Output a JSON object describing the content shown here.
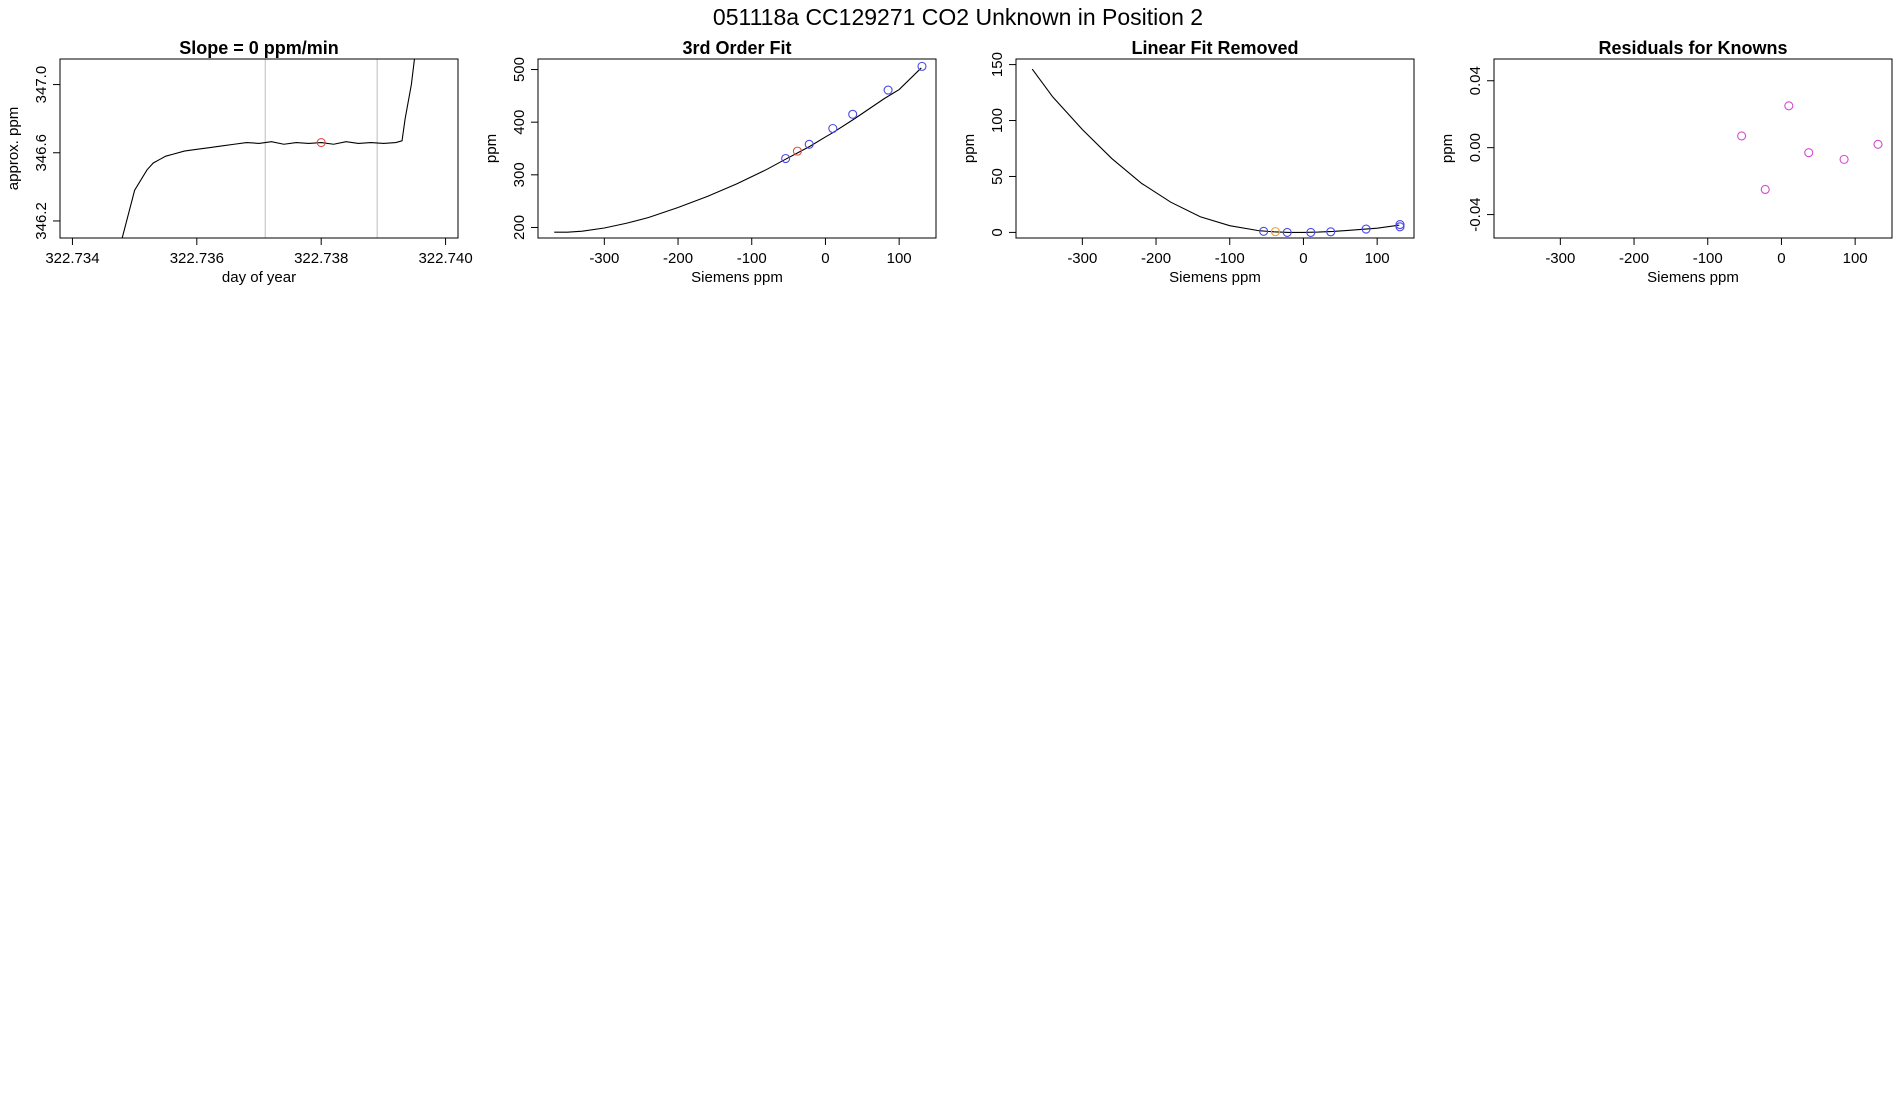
{
  "suptitle": "051118a      CC129271    CO2 Unknown in Position  2",
  "colors": {
    "known": "#4a4ae6",
    "unknown_red": "#e64a4a",
    "unknown_orange": "#f0a020",
    "residual": "#d24ad2",
    "gridline": "#bdbdbd"
  },
  "chart_data": [
    {
      "type": "line",
      "title": "Slope =  0  ppm/min",
      "xlabel": "day of year",
      "ylabel": "approx. ppm",
      "xlim": [
        322.7338,
        322.7402
      ],
      "ylim": [
        346.1,
        347.15
      ],
      "xticks": [
        322.734,
        322.736,
        322.738,
        322.74
      ],
      "xtick_labels": [
        "322.734",
        "322.736",
        "322.738",
        "322.740"
      ],
      "yticks": [
        346.2,
        346.6,
        347.0
      ],
      "ytick_labels": [
        "346.2",
        "346.6",
        "347.0"
      ],
      "vlines": [
        322.7371,
        322.7389
      ],
      "series": [
        {
          "x": [
            322.7348,
            322.735,
            322.7352,
            322.7353,
            322.7354,
            322.7355,
            322.7356,
            322.7358,
            322.736,
            322.7362,
            322.7364,
            322.7366,
            322.7368,
            322.737,
            322.7372,
            322.7374,
            322.7376,
            322.7378,
            322.738,
            322.7382,
            322.7384,
            322.7386,
            322.7388,
            322.739,
            322.7392,
            322.7393,
            322.73935,
            322.73945,
            322.7395
          ],
          "y": [
            346.1,
            346.38,
            346.5,
            346.54,
            346.56,
            346.58,
            346.59,
            346.61,
            346.62,
            346.63,
            346.64,
            346.65,
            346.66,
            346.655,
            346.665,
            346.65,
            346.66,
            346.655,
            346.66,
            346.65,
            346.665,
            346.655,
            346.66,
            346.655,
            346.66,
            346.67,
            346.8,
            347.0,
            347.15
          ]
        }
      ],
      "points": [
        {
          "x": 322.738,
          "y": 346.66,
          "color": "#e64a4a"
        }
      ]
    },
    {
      "type": "line",
      "title": "3rd Order Fit",
      "xlabel": "Siemens ppm",
      "ylabel": "ppm",
      "xlim": [
        -390,
        150
      ],
      "ylim": [
        180,
        520
      ],
      "xticks": [
        -300,
        -200,
        -100,
        0,
        100
      ],
      "xtick_labels": [
        "-300",
        "-200",
        "-100",
        "0",
        "100"
      ],
      "yticks": [
        200,
        300,
        400,
        500
      ],
      "ytick_labels": [
        "200",
        "300",
        "400",
        "500"
      ],
      "series": [
        {
          "x": [
            -368,
            -350,
            -330,
            -300,
            -270,
            -240,
            -200,
            -160,
            -120,
            -80,
            -55,
            -40,
            -20,
            0,
            10,
            40,
            80,
            100,
            130
          ],
          "y": [
            191,
            191,
            193,
            199,
            208,
            219,
            238,
            259,
            283,
            310,
            329,
            340,
            355,
            372,
            380,
            407,
            445,
            462,
            503
          ]
        }
      ],
      "points": [
        {
          "x": -54,
          "y": 331,
          "color": "#4a4ae6"
        },
        {
          "x": -22,
          "y": 358,
          "color": "#4a4ae6"
        },
        {
          "x": 10,
          "y": 388,
          "color": "#4a4ae6"
        },
        {
          "x": 37,
          "y": 415,
          "color": "#4a4ae6"
        },
        {
          "x": 85,
          "y": 461,
          "color": "#4a4ae6"
        },
        {
          "x": 131,
          "y": 506,
          "color": "#4a4ae6"
        },
        {
          "x": -38,
          "y": 345,
          "color": "#e64a4a"
        }
      ]
    },
    {
      "type": "line",
      "title": "Linear Fit Removed",
      "xlabel": "Siemens ppm",
      "ylabel": "ppm",
      "xlim": [
        -390,
        150
      ],
      "ylim": [
        -5,
        155
      ],
      "xticks": [
        -300,
        -200,
        -100,
        0,
        100
      ],
      "xtick_labels": [
        "-300",
        "-200",
        "-100",
        "0",
        "100"
      ],
      "yticks": [
        0,
        50,
        100,
        150
      ],
      "ytick_labels": [
        "0",
        "50",
        "100",
        "150"
      ],
      "series": [
        {
          "x": [
            -368,
            -340,
            -300,
            -260,
            -220,
            -180,
            -140,
            -100,
            -60,
            -40,
            -20,
            0,
            20,
            40,
            60,
            80,
            100,
            130
          ],
          "y": [
            146,
            121,
            92,
            66,
            44,
            27,
            14,
            6,
            1.5,
            0.5,
            0,
            0,
            0.3,
            0.9,
            1.8,
            2.8,
            3.8,
            6.5
          ]
        }
      ],
      "points": [
        {
          "x": -54,
          "y": 1,
          "color": "#4a4ae6"
        },
        {
          "x": -22,
          "y": 0,
          "color": "#4a4ae6"
        },
        {
          "x": 10,
          "y": 0,
          "color": "#4a4ae6"
        },
        {
          "x": 37,
          "y": 0.5,
          "color": "#4a4ae6"
        },
        {
          "x": 85,
          "y": 3,
          "color": "#4a4ae6"
        },
        {
          "x": 131,
          "y": 5,
          "color": "#4a4ae6"
        },
        {
          "x": 131,
          "y": 7,
          "color": "#4a4ae6"
        },
        {
          "x": -38,
          "y": 0.7,
          "color": "#f0a020"
        }
      ]
    },
    {
      "type": "scatter",
      "title": "Residuals for Knowns",
      "xlabel": "Siemens ppm",
      "ylabel": "ppm",
      "xlim": [
        -390,
        150
      ],
      "ylim": [
        -0.054,
        0.053
      ],
      "xticks": [
        -300,
        -200,
        -100,
        0,
        100
      ],
      "xtick_labels": [
        "-300",
        "-200",
        "-100",
        "0",
        "100"
      ],
      "yticks": [
        -0.04,
        0.0,
        0.04
      ],
      "ytick_labels": [
        "-0.04",
        "0.00",
        "0.04"
      ],
      "points": [
        {
          "x": -54,
          "y": 0.007,
          "color": "#d24ad2"
        },
        {
          "x": -22,
          "y": -0.025,
          "color": "#d24ad2"
        },
        {
          "x": 10,
          "y": 0.025,
          "color": "#d24ad2"
        },
        {
          "x": 37,
          "y": -0.003,
          "color": "#d24ad2"
        },
        {
          "x": 85,
          "y": -0.007,
          "color": "#d24ad2"
        },
        {
          "x": 131,
          "y": 0.002,
          "color": "#d24ad2"
        }
      ]
    }
  ]
}
